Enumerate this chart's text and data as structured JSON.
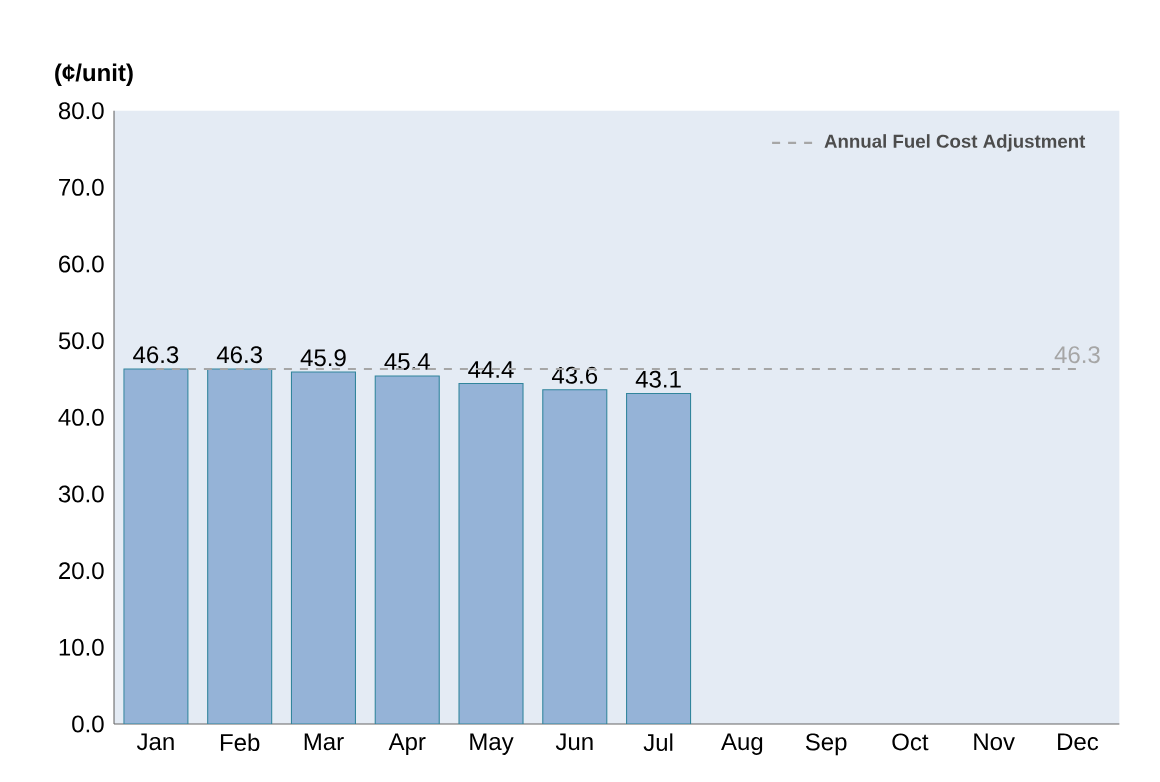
{
  "chart_data": {
    "type": "bar",
    "ylabel": "(¢/unit)",
    "categories": [
      "Jan",
      "Feb",
      "Mar",
      "Apr",
      "May",
      "Jun",
      "Jul",
      "Aug",
      "Sep",
      "Oct",
      "Nov",
      "Dec"
    ],
    "series": [
      {
        "color": "#95b3d7",
        "values": [
          46.3,
          46.3,
          45.9,
          45.4,
          44.4,
          43.6,
          43.1,
          null,
          null,
          null,
          null,
          null
        ],
        "value_labels": [
          "46.3",
          "46.3",
          "45.9",
          "45.4",
          "44.4",
          "43.6",
          "43.1",
          null,
          null,
          null,
          null,
          null
        ]
      },
      {
        "type": "line",
        "name": "Annual Fuel Cost Adjustment",
        "color": "#a6a6a6",
        "line_style": "dashed",
        "values": [
          46.3,
          46.3,
          46.3,
          46.3,
          46.3,
          46.3,
          46.3,
          46.3,
          46.3,
          46.3,
          46.3,
          46.3
        ],
        "value_labels": [
          null,
          null,
          null,
          null,
          null,
          null,
          null,
          null,
          null,
          null,
          null,
          "46.3"
        ]
      }
    ],
    "ylim": [
      0,
      80
    ],
    "yticks": [
      {
        "value": 0,
        "label": "0.0"
      },
      {
        "value": 10,
        "label": "10.0"
      },
      {
        "value": 20,
        "label": "20.0"
      },
      {
        "value": 30,
        "label": "30.0"
      },
      {
        "value": 40,
        "label": "40.0"
      },
      {
        "value": 50,
        "label": "50.0"
      },
      {
        "value": 60,
        "label": "60.0"
      },
      {
        "value": 70,
        "label": "70.0"
      },
      {
        "value": 80,
        "label": "80.0"
      }
    ],
    "legend": "top right"
  }
}
